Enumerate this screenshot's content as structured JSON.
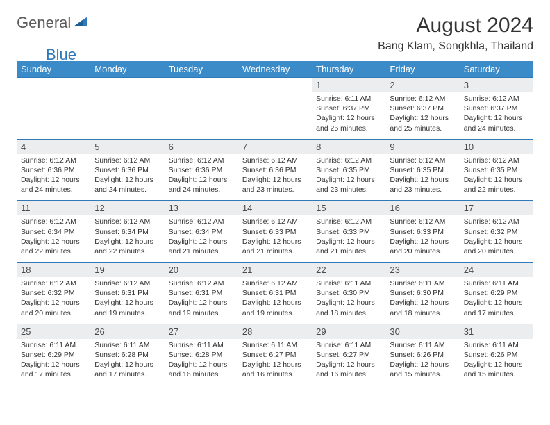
{
  "logo": {
    "part1": "General",
    "part2": "Blue"
  },
  "title": "August 2024",
  "location": "Bang Klam, Songkhla, Thailand",
  "colors": {
    "header_bg": "#3c8bc9",
    "header_text": "#ffffff",
    "daynum_bg": "#ebedef",
    "border": "#2f79b9",
    "logo_gray": "#5a5a5a",
    "logo_blue": "#2f79b9"
  },
  "weekdays": [
    "Sunday",
    "Monday",
    "Tuesday",
    "Wednesday",
    "Thursday",
    "Friday",
    "Saturday"
  ],
  "weeks": [
    [
      null,
      null,
      null,
      null,
      {
        "n": "1",
        "sr": "6:11 AM",
        "ss": "6:37 PM",
        "dl": "12 hours and 25 minutes."
      },
      {
        "n": "2",
        "sr": "6:12 AM",
        "ss": "6:37 PM",
        "dl": "12 hours and 25 minutes."
      },
      {
        "n": "3",
        "sr": "6:12 AM",
        "ss": "6:37 PM",
        "dl": "12 hours and 24 minutes."
      }
    ],
    [
      {
        "n": "4",
        "sr": "6:12 AM",
        "ss": "6:36 PM",
        "dl": "12 hours and 24 minutes."
      },
      {
        "n": "5",
        "sr": "6:12 AM",
        "ss": "6:36 PM",
        "dl": "12 hours and 24 minutes."
      },
      {
        "n": "6",
        "sr": "6:12 AM",
        "ss": "6:36 PM",
        "dl": "12 hours and 24 minutes."
      },
      {
        "n": "7",
        "sr": "6:12 AM",
        "ss": "6:36 PM",
        "dl": "12 hours and 23 minutes."
      },
      {
        "n": "8",
        "sr": "6:12 AM",
        "ss": "6:35 PM",
        "dl": "12 hours and 23 minutes."
      },
      {
        "n": "9",
        "sr": "6:12 AM",
        "ss": "6:35 PM",
        "dl": "12 hours and 23 minutes."
      },
      {
        "n": "10",
        "sr": "6:12 AM",
        "ss": "6:35 PM",
        "dl": "12 hours and 22 minutes."
      }
    ],
    [
      {
        "n": "11",
        "sr": "6:12 AM",
        "ss": "6:34 PM",
        "dl": "12 hours and 22 minutes."
      },
      {
        "n": "12",
        "sr": "6:12 AM",
        "ss": "6:34 PM",
        "dl": "12 hours and 22 minutes."
      },
      {
        "n": "13",
        "sr": "6:12 AM",
        "ss": "6:34 PM",
        "dl": "12 hours and 21 minutes."
      },
      {
        "n": "14",
        "sr": "6:12 AM",
        "ss": "6:33 PM",
        "dl": "12 hours and 21 minutes."
      },
      {
        "n": "15",
        "sr": "6:12 AM",
        "ss": "6:33 PM",
        "dl": "12 hours and 21 minutes."
      },
      {
        "n": "16",
        "sr": "6:12 AM",
        "ss": "6:33 PM",
        "dl": "12 hours and 20 minutes."
      },
      {
        "n": "17",
        "sr": "6:12 AM",
        "ss": "6:32 PM",
        "dl": "12 hours and 20 minutes."
      }
    ],
    [
      {
        "n": "18",
        "sr": "6:12 AM",
        "ss": "6:32 PM",
        "dl": "12 hours and 20 minutes."
      },
      {
        "n": "19",
        "sr": "6:12 AM",
        "ss": "6:31 PM",
        "dl": "12 hours and 19 minutes."
      },
      {
        "n": "20",
        "sr": "6:12 AM",
        "ss": "6:31 PM",
        "dl": "12 hours and 19 minutes."
      },
      {
        "n": "21",
        "sr": "6:12 AM",
        "ss": "6:31 PM",
        "dl": "12 hours and 19 minutes."
      },
      {
        "n": "22",
        "sr": "6:11 AM",
        "ss": "6:30 PM",
        "dl": "12 hours and 18 minutes."
      },
      {
        "n": "23",
        "sr": "6:11 AM",
        "ss": "6:30 PM",
        "dl": "12 hours and 18 minutes."
      },
      {
        "n": "24",
        "sr": "6:11 AM",
        "ss": "6:29 PM",
        "dl": "12 hours and 17 minutes."
      }
    ],
    [
      {
        "n": "25",
        "sr": "6:11 AM",
        "ss": "6:29 PM",
        "dl": "12 hours and 17 minutes."
      },
      {
        "n": "26",
        "sr": "6:11 AM",
        "ss": "6:28 PM",
        "dl": "12 hours and 17 minutes."
      },
      {
        "n": "27",
        "sr": "6:11 AM",
        "ss": "6:28 PM",
        "dl": "12 hours and 16 minutes."
      },
      {
        "n": "28",
        "sr": "6:11 AM",
        "ss": "6:27 PM",
        "dl": "12 hours and 16 minutes."
      },
      {
        "n": "29",
        "sr": "6:11 AM",
        "ss": "6:27 PM",
        "dl": "12 hours and 16 minutes."
      },
      {
        "n": "30",
        "sr": "6:11 AM",
        "ss": "6:26 PM",
        "dl": "12 hours and 15 minutes."
      },
      {
        "n": "31",
        "sr": "6:11 AM",
        "ss": "6:26 PM",
        "dl": "12 hours and 15 minutes."
      }
    ]
  ],
  "labels": {
    "sunrise": "Sunrise: ",
    "sunset": "Sunset: ",
    "daylight": "Daylight: "
  }
}
